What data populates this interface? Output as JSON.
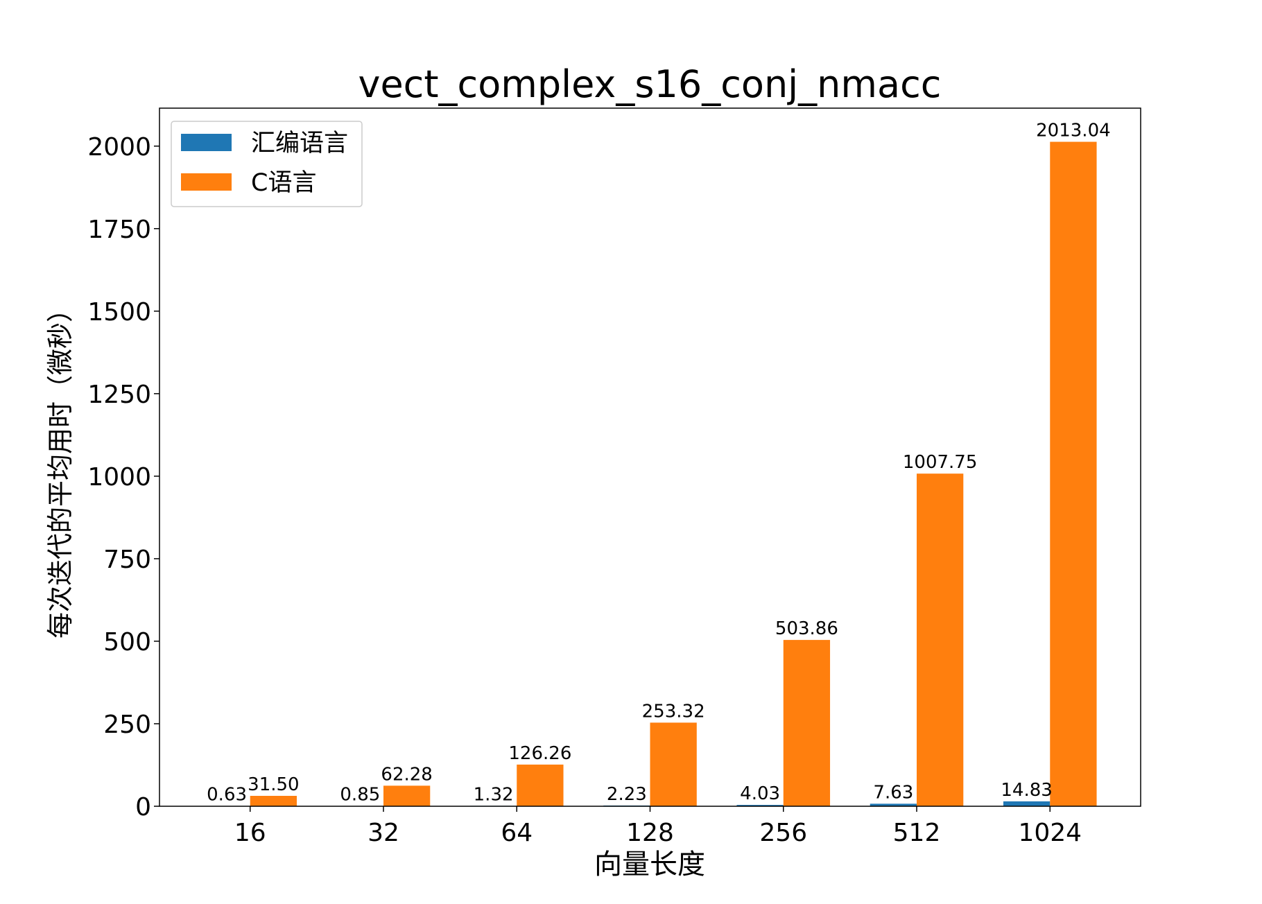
{
  "chart_data": {
    "type": "bar",
    "title": "vect_complex_s16_conj_nmacc",
    "xlabel": "向量长度",
    "ylabel": "每次迭代的平均用时（微秒）",
    "categories": [
      "16",
      "32",
      "64",
      "128",
      "256",
      "512",
      "1024"
    ],
    "series": [
      {
        "name": "汇编语言",
        "color": "#1f77b4",
        "values": [
          0.63,
          0.85,
          1.32,
          2.23,
          4.03,
          7.63,
          14.83
        ],
        "labels": [
          "0.63",
          "0.85",
          "1.32",
          "2.23",
          "4.03",
          "7.63",
          "14.83"
        ]
      },
      {
        "name": "C语言",
        "color": "#ff7f0e",
        "values": [
          31.5,
          62.28,
          126.26,
          253.32,
          503.86,
          1007.75,
          2013.04
        ],
        "labels": [
          "31.50",
          "62.28",
          "126.26",
          "253.32",
          "503.86",
          "1007.75",
          "2013.04"
        ]
      }
    ],
    "yticks": [
      "0",
      "250",
      "500",
      "750",
      "1000",
      "1250",
      "1500",
      "1750",
      "2000"
    ],
    "ylim": [
      0,
      2115
    ],
    "grid": false,
    "legend": "top-left"
  }
}
